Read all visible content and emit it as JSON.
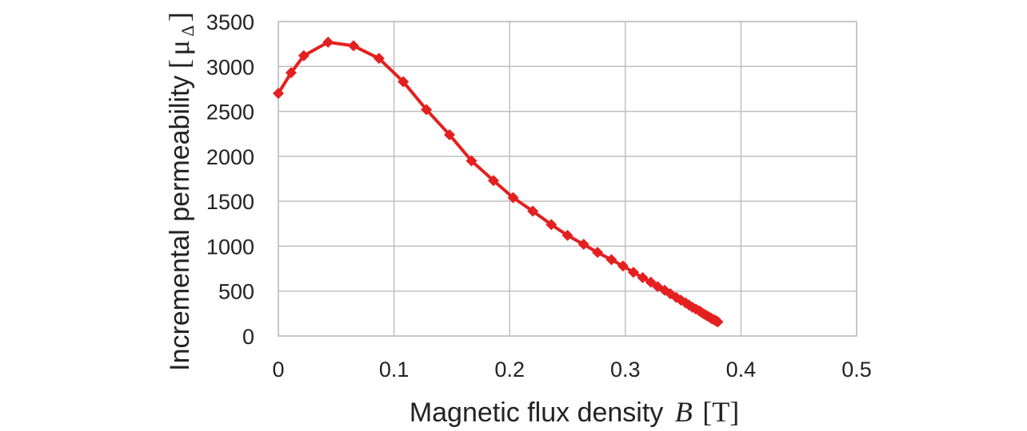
{
  "chart_data": {
    "type": "line",
    "xlabel_main": "Magnetic flux density",
    "xlabel_symbol": "B",
    "xlabel_unit": "[T]",
    "ylabel_main": "Incremental permeability",
    "ylabel_unit_open": "[",
    "ylabel_unit_symbol": "μ",
    "ylabel_unit_sub": "Δ",
    "ylabel_unit_close": "]",
    "xlim": [
      0,
      0.5
    ],
    "ylim": [
      0,
      3500
    ],
    "x_ticks": [
      0,
      0.1,
      0.2,
      0.3,
      0.4,
      0.5
    ],
    "x_tick_labels": [
      "0",
      "0.1",
      "0.2",
      "0.3",
      "0.4",
      "0.5"
    ],
    "y_ticks": [
      0,
      500,
      1000,
      1500,
      2000,
      2500,
      3000,
      3500
    ],
    "y_tick_labels": [
      "0",
      "500",
      "1000",
      "1500",
      "2000",
      "2500",
      "3000",
      "3500"
    ],
    "grid": true,
    "legend": "none",
    "series_color": "#e3201f",
    "grid_color": "#bfbfbf",
    "marker": "diamond",
    "series": [
      {
        "x": [
          0.0,
          0.011,
          0.022,
          0.043,
          0.065,
          0.087,
          0.108,
          0.128,
          0.148,
          0.167,
          0.186,
          0.203,
          0.22,
          0.236,
          0.25,
          0.264,
          0.276,
          0.288,
          0.298,
          0.307,
          0.315,
          0.322,
          0.328,
          0.334,
          0.339,
          0.344,
          0.348,
          0.352,
          0.355,
          0.358,
          0.361,
          0.364,
          0.366,
          0.368,
          0.37,
          0.372,
          0.374,
          0.375,
          0.377,
          0.378,
          0.379,
          0.38
        ],
        "y": [
          2700,
          2930,
          3120,
          3270,
          3230,
          3090,
          2830,
          2520,
          2240,
          1950,
          1730,
          1540,
          1390,
          1240,
          1120,
          1020,
          930,
          850,
          780,
          710,
          650,
          600,
          550,
          510,
          470,
          430,
          400,
          370,
          345,
          320,
          300,
          280,
          262,
          245,
          230,
          215,
          200,
          190,
          180,
          172,
          165,
          158
        ]
      }
    ]
  }
}
